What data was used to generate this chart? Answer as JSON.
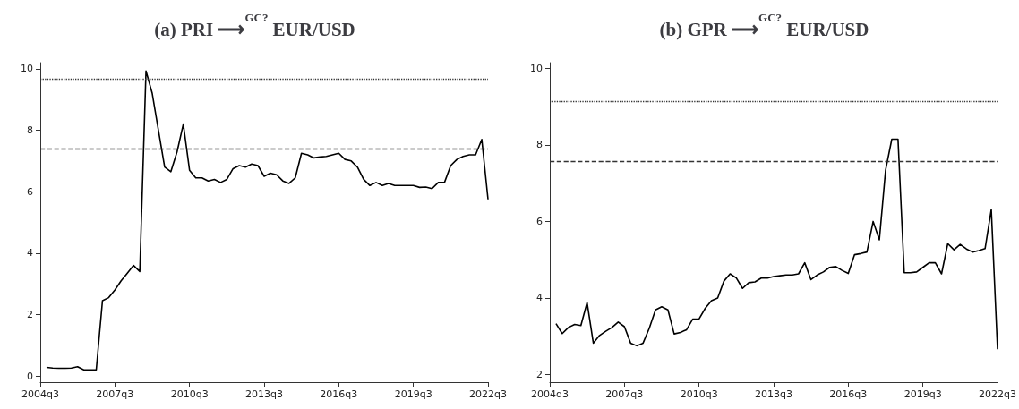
{
  "chart_data": [
    {
      "type": "line",
      "title": "(a) PRI ⟶$^{GC?}$ EUR/USD",
      "grid": false,
      "marker": "none",
      "line_style": "solid",
      "categories": [
        "2004q3",
        null,
        null,
        null,
        null,
        null,
        null,
        null,
        null,
        null,
        null,
        null,
        "2007q3",
        null,
        null,
        null,
        null,
        null,
        null,
        null,
        null,
        null,
        null,
        null,
        "2010q3",
        null,
        null,
        null,
        null,
        null,
        null,
        null,
        null,
        null,
        null,
        null,
        "2013q3",
        null,
        null,
        null,
        null,
        null,
        null,
        null,
        null,
        null,
        null,
        null,
        "2016q3",
        null,
        null,
        null,
        null,
        null,
        null,
        null,
        null,
        null,
        null,
        null,
        "2019q3",
        null,
        null,
        null,
        null,
        null,
        null,
        null,
        null,
        null,
        null,
        null,
        "2022q3"
      ],
      "series": [
        {
          "color": "#000000",
          "values": [
            null,
            0.28,
            0.26,
            0.25,
            0.25,
            0.26,
            0.3,
            0.2,
            0.2,
            0.2,
            2.45,
            2.55,
            2.8,
            3.1,
            3.35,
            3.6,
            3.4,
            9.93,
            9.2,
            8.0,
            6.8,
            6.65,
            7.3,
            8.2,
            6.7,
            6.45,
            6.45,
            6.35,
            6.4,
            6.3,
            6.4,
            6.75,
            6.85,
            6.8,
            6.9,
            6.85,
            6.5,
            6.6,
            6.55,
            6.35,
            6.27,
            6.45,
            7.25,
            7.2,
            7.1,
            7.13,
            7.15,
            7.2,
            7.25,
            7.05,
            7.0,
            6.8,
            6.4,
            6.2,
            6.3,
            6.2,
            6.27,
            6.2,
            6.2,
            6.2,
            6.2,
            6.14,
            6.15,
            6.1,
            6.3,
            6.3,
            6.85,
            7.05,
            7.15,
            7.2,
            7.2,
            7.7,
            5.75
          ]
        }
      ],
      "ylim": [
        -0.2,
        10.2
      ],
      "yticks": [
        0,
        2,
        4,
        6,
        8,
        10
      ],
      "ref_lines": [
        {
          "axis": "y",
          "value": 9.66,
          "color": "#333333",
          "line_style": "dotted"
        },
        {
          "axis": "y",
          "value": 7.4,
          "color": "#333333",
          "line_style": "dashed"
        }
      ]
    },
    {
      "type": "line",
      "title": "(b) GPR ⟶$^{GC?}$ EUR/USD",
      "grid": false,
      "marker": "none",
      "line_style": "solid",
      "categories": [
        "2004q3",
        null,
        null,
        null,
        null,
        null,
        null,
        null,
        null,
        null,
        null,
        null,
        "2007q3",
        null,
        null,
        null,
        null,
        null,
        null,
        null,
        null,
        null,
        null,
        null,
        "2010q3",
        null,
        null,
        null,
        null,
        null,
        null,
        null,
        null,
        null,
        null,
        null,
        "2013q3",
        null,
        null,
        null,
        null,
        null,
        null,
        null,
        null,
        null,
        null,
        null,
        "2016q3",
        null,
        null,
        null,
        null,
        null,
        null,
        null,
        null,
        null,
        null,
        null,
        "2019q3",
        null,
        null,
        null,
        null,
        null,
        null,
        null,
        null,
        null,
        null,
        null,
        "2022q3"
      ],
      "series": [
        {
          "color": "#000000",
          "values": [
            null,
            3.33,
            3.07,
            3.23,
            3.31,
            3.28,
            3.88,
            2.82,
            3.02,
            3.13,
            3.23,
            3.37,
            3.25,
            2.82,
            2.75,
            2.82,
            3.21,
            3.69,
            3.77,
            3.69,
            3.06,
            3.1,
            3.17,
            3.45,
            3.45,
            3.73,
            3.93,
            4.0,
            4.44,
            4.63,
            4.52,
            4.25,
            4.4,
            4.42,
            4.52,
            4.52,
            4.56,
            4.58,
            4.6,
            4.6,
            4.63,
            4.92,
            4.48,
            4.6,
            4.68,
            4.8,
            4.82,
            4.72,
            4.64,
            5.13,
            5.16,
            5.2,
            6.0,
            5.52,
            7.34,
            8.15,
            8.15,
            4.66,
            4.66,
            4.68,
            4.8,
            4.92,
            4.92,
            4.63,
            5.42,
            5.26,
            5.4,
            5.28,
            5.2,
            5.24,
            5.29,
            6.31,
            2.66
          ]
        }
      ],
      "ylim": [
        1.8,
        10.15
      ],
      "yticks": [
        2,
        4,
        6,
        8,
        10
      ],
      "ref_lines": [
        {
          "axis": "y",
          "value": 9.13,
          "color": "#333333",
          "line_style": "dotted"
        },
        {
          "axis": "y",
          "value": 7.56,
          "color": "#333333",
          "line_style": "dashed"
        }
      ]
    }
  ]
}
